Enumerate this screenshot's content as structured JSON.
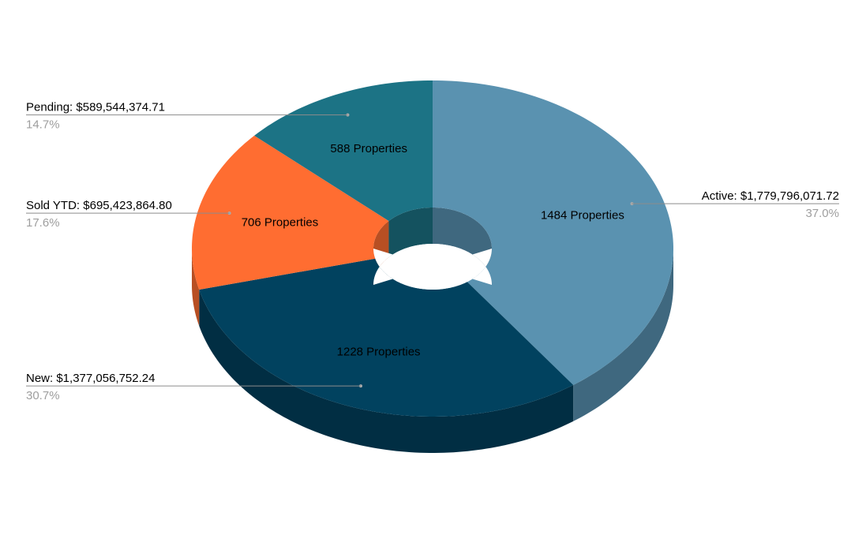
{
  "chart_data": {
    "type": "pie",
    "variant": "3d-donut",
    "title": "",
    "legend_placement": "outside-callouts",
    "slices": [
      {
        "name": "Active",
        "value": 1779796071.72,
        "value_label": "Active: $1,779,796,071.72",
        "percent_label": "37.0%",
        "count_label": "1484 Properties",
        "color": "#5a92b0",
        "side_color": "#3f687f"
      },
      {
        "name": "New",
        "value": 1377056752.24,
        "value_label": "New: $1,377,056,752.24",
        "percent_label": "30.7%",
        "count_label": "1228 Properties",
        "color": "#01425f",
        "side_color": "#012e43"
      },
      {
        "name": "Sold YTD",
        "value": 695423864.8,
        "value_label": "Sold YTD: $695,423,864.80",
        "percent_label": "17.6%",
        "count_label": "706 Properties",
        "color": "#ff6d31",
        "side_color": "#b84f23"
      },
      {
        "name": "Pending",
        "value": 589544374.71,
        "value_label": "Pending: $589,544,374.71",
        "percent_label": "14.7%",
        "count_label": "588 Properties",
        "color": "#1c7385",
        "side_color": "#14525f"
      }
    ]
  }
}
